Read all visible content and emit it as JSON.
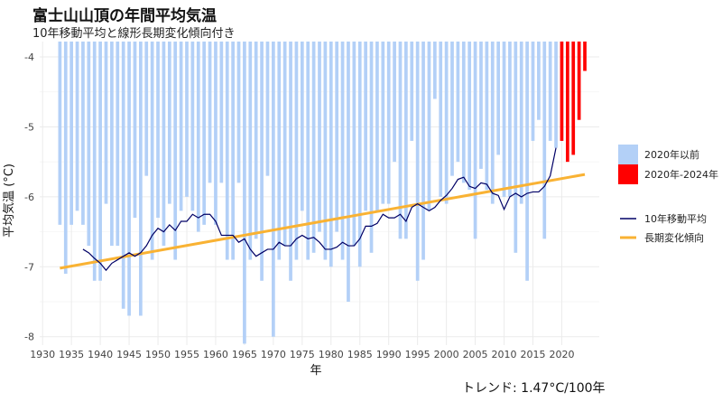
{
  "title": "富士山山頂の年間平均気温",
  "subtitle": "10年移動平均と線形長期変化傾向付き",
  "caption": "トレンド: 1.47°C/100年",
  "chart_data": {
    "type": "bar",
    "xlabel": "年",
    "ylabel": "平均気温 (°C)",
    "xlim": [
      1929.5,
      2026.5
    ],
    "ylim": [
      -8.12,
      -3.78
    ],
    "bar_baseline": -3.78,
    "xticks": [
      1930,
      1935,
      1940,
      1945,
      1950,
      1955,
      1960,
      1965,
      1970,
      1975,
      1980,
      1985,
      1990,
      1995,
      2000,
      2005,
      2010,
      2015,
      2020
    ],
    "yticks": [
      -8,
      -7,
      -6,
      -5,
      -4
    ],
    "grid": true,
    "legend_position": "right",
    "colors": {
      "bars_before": "#b3d0f7",
      "bars_recent": "#ff0000",
      "moving_average": "#000066",
      "trend": "#f9b233"
    },
    "series": [
      {
        "name": "2020年以前",
        "kind": "bar",
        "x": [
          1933,
          1934,
          1935,
          1936,
          1937,
          1938,
          1939,
          1940,
          1941,
          1942,
          1943,
          1944,
          1945,
          1946,
          1947,
          1948,
          1949,
          1950,
          1951,
          1952,
          1953,
          1954,
          1955,
          1956,
          1957,
          1958,
          1959,
          1960,
          1961,
          1962,
          1963,
          1964,
          1965,
          1966,
          1967,
          1968,
          1969,
          1970,
          1971,
          1972,
          1973,
          1974,
          1975,
          1976,
          1977,
          1978,
          1979,
          1980,
          1981,
          1982,
          1983,
          1984,
          1985,
          1986,
          1987,
          1988,
          1989,
          1990,
          1991,
          1992,
          1993,
          1994,
          1995,
          1996,
          1997,
          1998,
          1999,
          2000,
          2001,
          2002,
          2003,
          2004,
          2005,
          2006,
          2007,
          2008,
          2009,
          2010,
          2011,
          2012,
          2013,
          2014,
          2015,
          2016,
          2017,
          2018,
          2019
        ],
        "values": [
          -6.4,
          -7.1,
          -6.4,
          -6.2,
          -6.4,
          -6.7,
          -7.2,
          -7.2,
          -6.1,
          -6.7,
          -6.7,
          -7.6,
          -7.7,
          -6.3,
          -7.7,
          -5.7,
          -6.9,
          -6.3,
          -6.7,
          -6.1,
          -6.9,
          -6.2,
          -6.0,
          -6.2,
          -6.5,
          -6.4,
          -5.8,
          -6.4,
          -5.8,
          -6.9,
          -6.9,
          -5.8,
          -8.1,
          -6.9,
          -6.6,
          -7.2,
          -5.7,
          -8.0,
          -6.9,
          -6.7,
          -7.2,
          -6.9,
          -6.2,
          -6.9,
          -6.8,
          -6.5,
          -6.9,
          -7.0,
          -6.5,
          -6.9,
          -7.5,
          -6.7,
          -7.0,
          -6.2,
          -6.8,
          -6.2,
          -6.1,
          -6.1,
          -5.5,
          -6.6,
          -6.6,
          -5.2,
          -7.2,
          -6.9,
          -6.2,
          -4.6,
          -6.0,
          -6.1,
          -5.7,
          -5.5,
          -5.8,
          -5.9,
          -6.6,
          -5.6,
          -5.9,
          -6.1,
          -5.4,
          -6.0,
          -6.0,
          -6.8,
          -6.1,
          -7.2,
          -5.2,
          -4.9,
          -6.6,
          -5.2,
          -5.3
        ]
      },
      {
        "name": "2020年-2024年",
        "kind": "bar",
        "x": [
          2020,
          2021,
          2022,
          2023,
          2024
        ],
        "values": [
          -5.2,
          -5.5,
          -5.4,
          -4.9,
          -4.2
        ]
      },
      {
        "name": "10年移動平均",
        "kind": "line",
        "x": [
          1937,
          1938,
          1939,
          1940,
          1941,
          1942,
          1943,
          1944,
          1945,
          1946,
          1947,
          1948,
          1949,
          1950,
          1951,
          1952,
          1953,
          1954,
          1955,
          1956,
          1957,
          1958,
          1959,
          1960,
          1961,
          1962,
          1963,
          1964,
          1965,
          1966,
          1967,
          1968,
          1969,
          1970,
          1971,
          1972,
          1973,
          1974,
          1975,
          1976,
          1977,
          1978,
          1979,
          1980,
          1981,
          1982,
          1983,
          1984,
          1985,
          1986,
          1987,
          1988,
          1989,
          1990,
          1991,
          1992,
          1993,
          1994,
          1995,
          1996,
          1997,
          1998,
          1999,
          2000,
          2001,
          2002,
          2003,
          2004,
          2005,
          2006,
          2007,
          2008,
          2009,
          2010,
          2011,
          2012,
          2013,
          2014,
          2015,
          2016,
          2017,
          2018,
          2019
        ],
        "values": [
          -6.75,
          -6.8,
          -6.88,
          -6.95,
          -7.05,
          -6.95,
          -6.9,
          -6.85,
          -6.8,
          -6.85,
          -6.8,
          -6.7,
          -6.55,
          -6.45,
          -6.5,
          -6.4,
          -6.48,
          -6.35,
          -6.35,
          -6.25,
          -6.3,
          -6.25,
          -6.25,
          -6.35,
          -6.55,
          -6.55,
          -6.55,
          -6.65,
          -6.6,
          -6.75,
          -6.85,
          -6.8,
          -6.75,
          -6.75,
          -6.65,
          -6.7,
          -6.7,
          -6.6,
          -6.55,
          -6.6,
          -6.58,
          -6.65,
          -6.75,
          -6.75,
          -6.72,
          -6.65,
          -6.7,
          -6.7,
          -6.6,
          -6.42,
          -6.42,
          -6.38,
          -6.25,
          -6.3,
          -6.3,
          -6.25,
          -6.35,
          -6.15,
          -6.1,
          -6.15,
          -6.2,
          -6.15,
          -6.05,
          -5.98,
          -5.88,
          -5.75,
          -5.72,
          -5.85,
          -5.88,
          -5.8,
          -5.82,
          -5.95,
          -5.98,
          -6.18,
          -6.0,
          -5.95,
          -6.0,
          -5.95,
          -5.93,
          -5.93,
          -5.85,
          -5.7,
          -5.3
        ]
      },
      {
        "name": "長期変化傾向",
        "kind": "line",
        "x": [
          1933,
          2024
        ],
        "values": [
          -7.02,
          -5.68
        ]
      }
    ]
  }
}
